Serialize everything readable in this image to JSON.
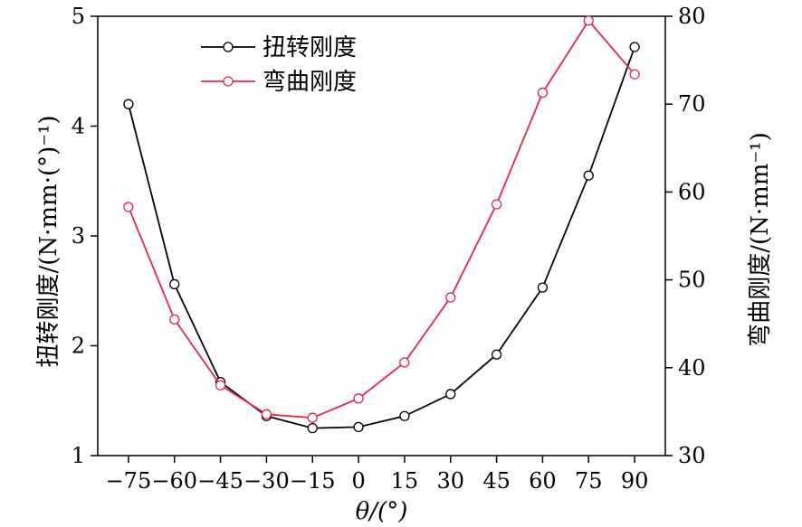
{
  "chart_data": {
    "type": "line",
    "x": [
      -75,
      -60,
      -45,
      -30,
      -15,
      0,
      15,
      30,
      45,
      60,
      75,
      90
    ],
    "xticks": [
      "−75",
      "−60",
      "−45",
      "−30",
      "−15",
      "0",
      "15",
      "30",
      "45",
      "60",
      "75",
      "90"
    ],
    "xlim": [
      -85,
      100
    ],
    "xlabel": "θ/(°)",
    "ylabel_left": "扭转刚度/(N·mm·(°)⁻¹)",
    "ylabel_right": "弯曲刚度/(N·mm⁻¹)",
    "ylim_left": [
      1,
      5
    ],
    "ylim_right": [
      30,
      80
    ],
    "yticks_left": [
      1,
      2,
      3,
      4,
      5
    ],
    "yticks_right": [
      30,
      40,
      50,
      60,
      70,
      80
    ],
    "legend_position": "top-left",
    "grid": false,
    "series": [
      {
        "name": "扭转刚度",
        "axis": "left",
        "color": "#000000",
        "values": [
          4.2,
          2.56,
          1.67,
          1.36,
          1.25,
          1.26,
          1.36,
          1.56,
          1.92,
          2.53,
          3.55,
          4.72
        ]
      },
      {
        "name": "弯曲刚度",
        "axis": "right",
        "color": "#e8254f",
        "values": [
          58.3,
          45.5,
          38.0,
          34.7,
          34.3,
          36.5,
          40.6,
          48.0,
          58.6,
          71.3,
          79.5,
          73.4
        ]
      }
    ]
  }
}
